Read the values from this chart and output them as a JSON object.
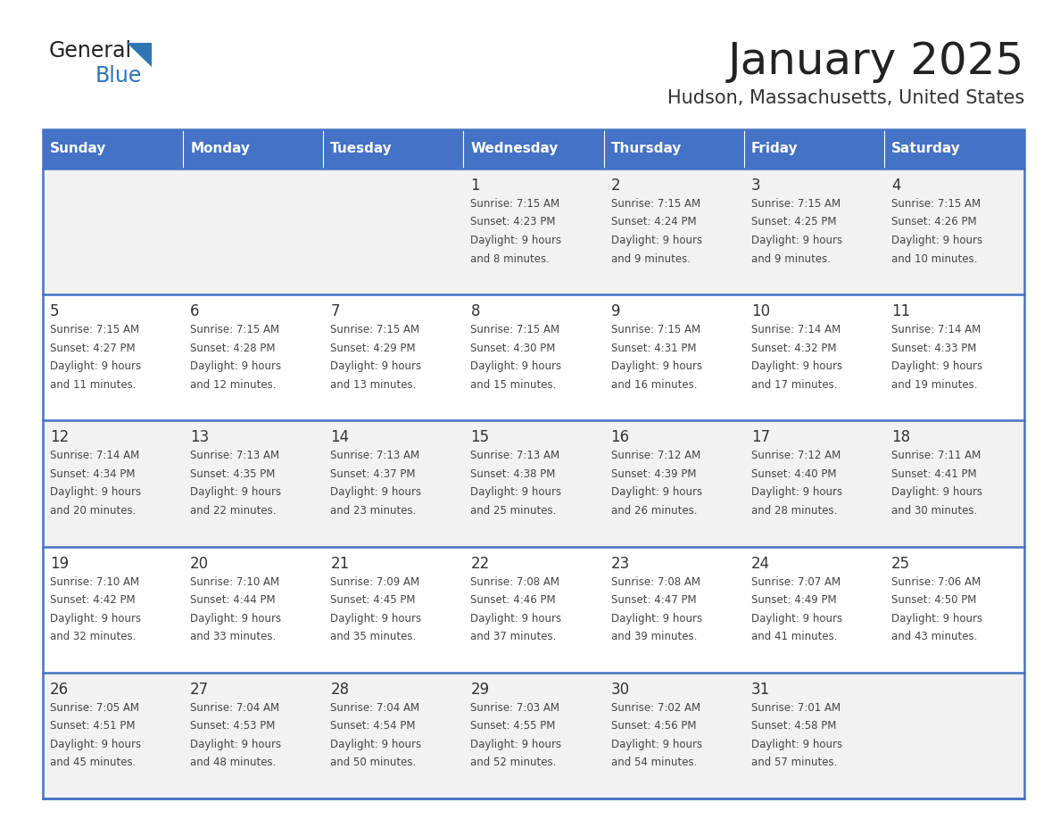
{
  "title": "January 2025",
  "subtitle": "Hudson, Massachusetts, United States",
  "header_bg_color": "#4472C4",
  "header_text_color": "#FFFFFF",
  "row_bg_even": "#F2F2F2",
  "row_bg_odd": "#FFFFFF",
  "day_number_color": "#333333",
  "cell_text_color": "#444444",
  "title_color": "#222222",
  "subtitle_color": "#333333",
  "separator_color": "#4472C4",
  "logo_general_color": "#222222",
  "logo_blue_color": "#2E75B6",
  "triangle_color": "#2E75B6",
  "days_of_week": [
    "Sunday",
    "Monday",
    "Tuesday",
    "Wednesday",
    "Thursday",
    "Friday",
    "Saturday"
  ],
  "weeks": [
    [
      {
        "day": "",
        "sunrise": "",
        "sunset": "",
        "daylight": ""
      },
      {
        "day": "",
        "sunrise": "",
        "sunset": "",
        "daylight": ""
      },
      {
        "day": "",
        "sunrise": "",
        "sunset": "",
        "daylight": ""
      },
      {
        "day": "1",
        "sunrise": "7:15 AM",
        "sunset": "4:23 PM",
        "daylight": "9 hours and 8 minutes."
      },
      {
        "day": "2",
        "sunrise": "7:15 AM",
        "sunset": "4:24 PM",
        "daylight": "9 hours and 9 minutes."
      },
      {
        "day": "3",
        "sunrise": "7:15 AM",
        "sunset": "4:25 PM",
        "daylight": "9 hours and 9 minutes."
      },
      {
        "day": "4",
        "sunrise": "7:15 AM",
        "sunset": "4:26 PM",
        "daylight": "9 hours and 10 minutes."
      }
    ],
    [
      {
        "day": "5",
        "sunrise": "7:15 AM",
        "sunset": "4:27 PM",
        "daylight": "9 hours and 11 minutes."
      },
      {
        "day": "6",
        "sunrise": "7:15 AM",
        "sunset": "4:28 PM",
        "daylight": "9 hours and 12 minutes."
      },
      {
        "day": "7",
        "sunrise": "7:15 AM",
        "sunset": "4:29 PM",
        "daylight": "9 hours and 13 minutes."
      },
      {
        "day": "8",
        "sunrise": "7:15 AM",
        "sunset": "4:30 PM",
        "daylight": "9 hours and 15 minutes."
      },
      {
        "day": "9",
        "sunrise": "7:15 AM",
        "sunset": "4:31 PM",
        "daylight": "9 hours and 16 minutes."
      },
      {
        "day": "10",
        "sunrise": "7:14 AM",
        "sunset": "4:32 PM",
        "daylight": "9 hours and 17 minutes."
      },
      {
        "day": "11",
        "sunrise": "7:14 AM",
        "sunset": "4:33 PM",
        "daylight": "9 hours and 19 minutes."
      }
    ],
    [
      {
        "day": "12",
        "sunrise": "7:14 AM",
        "sunset": "4:34 PM",
        "daylight": "9 hours and 20 minutes."
      },
      {
        "day": "13",
        "sunrise": "7:13 AM",
        "sunset": "4:35 PM",
        "daylight": "9 hours and 22 minutes."
      },
      {
        "day": "14",
        "sunrise": "7:13 AM",
        "sunset": "4:37 PM",
        "daylight": "9 hours and 23 minutes."
      },
      {
        "day": "15",
        "sunrise": "7:13 AM",
        "sunset": "4:38 PM",
        "daylight": "9 hours and 25 minutes."
      },
      {
        "day": "16",
        "sunrise": "7:12 AM",
        "sunset": "4:39 PM",
        "daylight": "9 hours and 26 minutes."
      },
      {
        "day": "17",
        "sunrise": "7:12 AM",
        "sunset": "4:40 PM",
        "daylight": "9 hours and 28 minutes."
      },
      {
        "day": "18",
        "sunrise": "7:11 AM",
        "sunset": "4:41 PM",
        "daylight": "9 hours and 30 minutes."
      }
    ],
    [
      {
        "day": "19",
        "sunrise": "7:10 AM",
        "sunset": "4:42 PM",
        "daylight": "9 hours and 32 minutes."
      },
      {
        "day": "20",
        "sunrise": "7:10 AM",
        "sunset": "4:44 PM",
        "daylight": "9 hours and 33 minutes."
      },
      {
        "day": "21",
        "sunrise": "7:09 AM",
        "sunset": "4:45 PM",
        "daylight": "9 hours and 35 minutes."
      },
      {
        "day": "22",
        "sunrise": "7:08 AM",
        "sunset": "4:46 PM",
        "daylight": "9 hours and 37 minutes."
      },
      {
        "day": "23",
        "sunrise": "7:08 AM",
        "sunset": "4:47 PM",
        "daylight": "9 hours and 39 minutes."
      },
      {
        "day": "24",
        "sunrise": "7:07 AM",
        "sunset": "4:49 PM",
        "daylight": "9 hours and 41 minutes."
      },
      {
        "day": "25",
        "sunrise": "7:06 AM",
        "sunset": "4:50 PM",
        "daylight": "9 hours and 43 minutes."
      }
    ],
    [
      {
        "day": "26",
        "sunrise": "7:05 AM",
        "sunset": "4:51 PM",
        "daylight": "9 hours and 45 minutes."
      },
      {
        "day": "27",
        "sunrise": "7:04 AM",
        "sunset": "4:53 PM",
        "daylight": "9 hours and 48 minutes."
      },
      {
        "day": "28",
        "sunrise": "7:04 AM",
        "sunset": "4:54 PM",
        "daylight": "9 hours and 50 minutes."
      },
      {
        "day": "29",
        "sunrise": "7:03 AM",
        "sunset": "4:55 PM",
        "daylight": "9 hours and 52 minutes."
      },
      {
        "day": "30",
        "sunrise": "7:02 AM",
        "sunset": "4:56 PM",
        "daylight": "9 hours and 54 minutes."
      },
      {
        "day": "31",
        "sunrise": "7:01 AM",
        "sunset": "4:58 PM",
        "daylight": "9 hours and 57 minutes."
      },
      {
        "day": "",
        "sunrise": "",
        "sunset": "",
        "daylight": ""
      }
    ]
  ]
}
